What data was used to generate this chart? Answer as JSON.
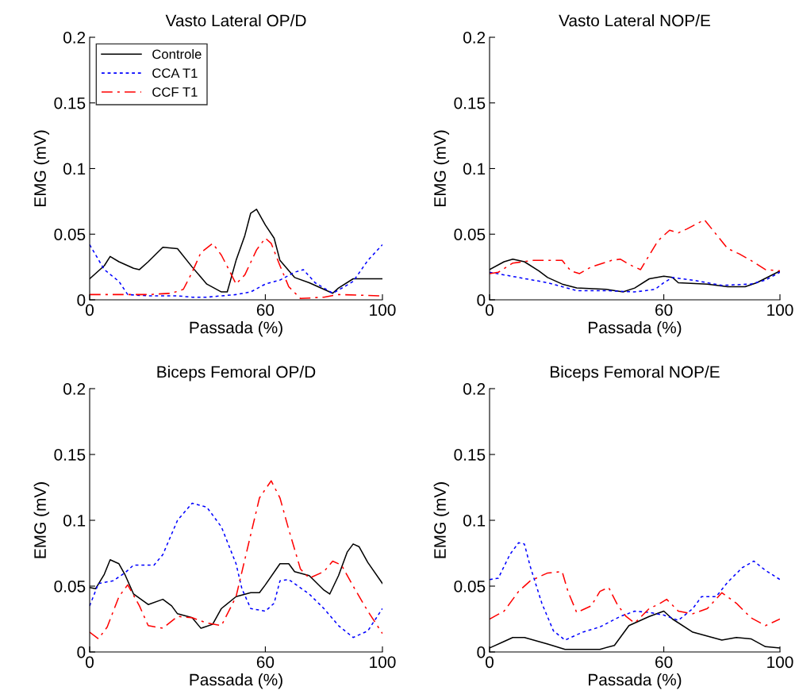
{
  "chart_data": [
    {
      "type": "line",
      "title": "Vasto Lateral OP/D",
      "xlabel": "Passada (%)",
      "ylabel": "EMG (mV)",
      "xlim": [
        0,
        100
      ],
      "xticks": [
        0,
        60,
        100
      ],
      "ylim": [
        0,
        0.2
      ],
      "yticks": [
        0,
        0.05,
        0.1,
        0.15,
        0.2
      ],
      "grid": false,
      "legend": "top left",
      "series": [
        {
          "name": "Controle",
          "color": "#000000",
          "line_style": "solid",
          "x": [
            0,
            5,
            7,
            10,
            15,
            17,
            20,
            25,
            30,
            35,
            40,
            45,
            47,
            50,
            53,
            55,
            57,
            60,
            63,
            65,
            70,
            75,
            80,
            83,
            85,
            90,
            95,
            100
          ],
          "values": [
            0.016,
            0.026,
            0.033,
            0.029,
            0.024,
            0.023,
            0.029,
            0.04,
            0.039,
            0.025,
            0.012,
            0.006,
            0.006,
            0.03,
            0.049,
            0.066,
            0.069,
            0.057,
            0.047,
            0.03,
            0.017,
            0.013,
            0.008,
            0.005,
            0.009,
            0.016,
            0.016,
            0.016
          ]
        },
        {
          "name": "CCA T1",
          "color": "#0000ff",
          "line_style": "dotted",
          "x": [
            0,
            5,
            10,
            13,
            20,
            30,
            35,
            40,
            45,
            50,
            55,
            60,
            65,
            70,
            73,
            77,
            83,
            87,
            90,
            95,
            100
          ],
          "values": [
            0.042,
            0.023,
            0.014,
            0.004,
            0.003,
            0.003,
            0.002,
            0.002,
            0.003,
            0.004,
            0.006,
            0.012,
            0.015,
            0.021,
            0.023,
            0.013,
            0.005,
            0.01,
            0.014,
            0.03,
            0.042
          ]
        },
        {
          "name": "CCF T1",
          "color": "#ff0000",
          "line_style": "dashed",
          "x": [
            0,
            10,
            20,
            28,
            32,
            35,
            38,
            42,
            45,
            48,
            50,
            53,
            57,
            60,
            62,
            65,
            68,
            72,
            80,
            85,
            100
          ],
          "values": [
            0.004,
            0.004,
            0.004,
            0.005,
            0.008,
            0.021,
            0.036,
            0.043,
            0.034,
            0.021,
            0.012,
            0.019,
            0.038,
            0.047,
            0.043,
            0.026,
            0.01,
            0.001,
            0.002,
            0.004,
            0.003
          ]
        }
      ]
    },
    {
      "type": "line",
      "title": "Vasto Lateral NOP/E",
      "xlabel": "Passada (%)",
      "ylabel": "EMG (mV)",
      "xlim": [
        0,
        100
      ],
      "xticks": [
        0,
        60,
        100
      ],
      "ylim": [
        0,
        0.2
      ],
      "yticks": [
        0,
        0.05,
        0.1,
        0.15,
        0.2
      ],
      "grid": false,
      "series": [
        {
          "color": "#000000",
          "line_style": "solid",
          "x": [
            0,
            5,
            8,
            12,
            17,
            20,
            25,
            30,
            40,
            46,
            50,
            55,
            60,
            63,
            65,
            75,
            82,
            88,
            92,
            100
          ],
          "values": [
            0.023,
            0.029,
            0.031,
            0.029,
            0.022,
            0.017,
            0.012,
            0.009,
            0.008,
            0.006,
            0.009,
            0.016,
            0.018,
            0.017,
            0.013,
            0.012,
            0.01,
            0.01,
            0.013,
            0.022
          ]
        },
        {
          "color": "#0000ff",
          "line_style": "dotted",
          "x": [
            0,
            10,
            20,
            30,
            40,
            50,
            57,
            60,
            63,
            70,
            80,
            90,
            95,
            100
          ],
          "values": [
            0.021,
            0.017,
            0.013,
            0.007,
            0.007,
            0.006,
            0.008,
            0.013,
            0.017,
            0.015,
            0.011,
            0.012,
            0.015,
            0.021
          ]
        },
        {
          "color": "#ff0000",
          "line_style": "dashed",
          "x": [
            0,
            3,
            8,
            15,
            20,
            25,
            28,
            31,
            35,
            42,
            45,
            48,
            52,
            55,
            58,
            62,
            65,
            68,
            74,
            78,
            82,
            86,
            90,
            95,
            100
          ],
          "values": [
            0.02,
            0.021,
            0.028,
            0.03,
            0.03,
            0.03,
            0.022,
            0.02,
            0.025,
            0.03,
            0.031,
            0.027,
            0.023,
            0.034,
            0.045,
            0.053,
            0.051,
            0.054,
            0.061,
            0.05,
            0.039,
            0.035,
            0.03,
            0.023,
            0.022
          ]
        }
      ]
    },
    {
      "type": "line",
      "title": "Biceps Femoral OP/D",
      "xlabel": "Passada (%)",
      "ylabel": "EMG (mV)",
      "xlim": [
        0,
        100
      ],
      "xticks": [
        0,
        60,
        100
      ],
      "ylim": [
        0,
        0.2
      ],
      "yticks": [
        0,
        0.05,
        0.1,
        0.15,
        0.2
      ],
      "grid": false,
      "series": [
        {
          "color": "#000000",
          "line_style": "solid",
          "x": [
            0,
            2,
            5,
            7,
            10,
            12,
            15,
            20,
            25,
            28,
            30,
            35,
            38,
            42,
            45,
            50,
            55,
            58,
            60,
            65,
            68,
            70,
            75,
            80,
            82,
            85,
            88,
            90,
            92,
            95,
            100
          ],
          "values": [
            0.049,
            0.048,
            0.059,
            0.07,
            0.067,
            0.059,
            0.044,
            0.036,
            0.04,
            0.035,
            0.029,
            0.026,
            0.018,
            0.021,
            0.033,
            0.042,
            0.045,
            0.045,
            0.051,
            0.067,
            0.067,
            0.061,
            0.058,
            0.047,
            0.044,
            0.058,
            0.076,
            0.082,
            0.08,
            0.068,
            0.052
          ]
        },
        {
          "color": "#0000ff",
          "line_style": "dotted",
          "x": [
            0,
            3,
            8,
            12,
            15,
            22,
            25,
            30,
            35,
            40,
            45,
            50,
            52,
            55,
            60,
            63,
            65,
            68,
            75,
            80,
            85,
            90,
            95,
            100
          ],
          "values": [
            0.035,
            0.052,
            0.054,
            0.06,
            0.066,
            0.066,
            0.074,
            0.1,
            0.113,
            0.11,
            0.095,
            0.067,
            0.048,
            0.033,
            0.031,
            0.037,
            0.054,
            0.055,
            0.044,
            0.033,
            0.02,
            0.011,
            0.016,
            0.033
          ]
        },
        {
          "color": "#ff0000",
          "line_style": "dashed",
          "x": [
            0,
            3,
            6,
            10,
            13,
            17,
            20,
            25,
            30,
            35,
            40,
            45,
            50,
            55,
            58,
            62,
            65,
            68,
            72,
            75,
            80,
            83,
            86,
            90,
            95,
            100
          ],
          "values": [
            0.015,
            0.01,
            0.019,
            0.042,
            0.051,
            0.035,
            0.02,
            0.018,
            0.027,
            0.026,
            0.022,
            0.02,
            0.042,
            0.089,
            0.117,
            0.13,
            0.117,
            0.093,
            0.063,
            0.056,
            0.061,
            0.069,
            0.066,
            0.05,
            0.031,
            0.014
          ]
        }
      ]
    },
    {
      "type": "line",
      "title": "Biceps Femoral NOP/E",
      "xlabel": "Passada (%)",
      "ylabel": "EMG (mV)",
      "xlim": [
        0,
        100
      ],
      "xticks": [
        0,
        60,
        100
      ],
      "ylim": [
        0,
        0.2
      ],
      "yticks": [
        0,
        0.05,
        0.1,
        0.15,
        0.2
      ],
      "grid": false,
      "series": [
        {
          "color": "#000000",
          "line_style": "solid",
          "x": [
            0,
            5,
            8,
            12,
            20,
            26,
            38,
            43,
            48,
            55,
            60,
            63,
            70,
            80,
            85,
            90,
            95,
            100
          ],
          "values": [
            0.003,
            0.008,
            0.011,
            0.011,
            0.006,
            0.002,
            0.002,
            0.005,
            0.02,
            0.027,
            0.031,
            0.025,
            0.015,
            0.009,
            0.011,
            0.01,
            0.004,
            0.003
          ]
        },
        {
          "color": "#0000ff",
          "line_style": "dotted",
          "x": [
            0,
            3,
            7,
            10,
            12,
            14,
            18,
            22,
            26,
            32,
            38,
            45,
            50,
            55,
            60,
            65,
            70,
            73,
            78,
            82,
            87,
            91,
            95,
            100
          ],
          "values": [
            0.055,
            0.056,
            0.074,
            0.083,
            0.082,
            0.065,
            0.037,
            0.016,
            0.009,
            0.015,
            0.019,
            0.027,
            0.031,
            0.03,
            0.028,
            0.024,
            0.033,
            0.042,
            0.042,
            0.053,
            0.064,
            0.069,
            0.062,
            0.055
          ]
        },
        {
          "color": "#ff0000",
          "line_style": "dashed",
          "x": [
            0,
            5,
            10,
            14,
            20,
            25,
            27,
            30,
            35,
            38,
            41,
            44,
            47,
            50,
            55,
            58,
            61,
            65,
            70,
            75,
            80,
            85,
            90,
            95,
            100
          ],
          "values": [
            0.025,
            0.031,
            0.046,
            0.054,
            0.06,
            0.061,
            0.046,
            0.03,
            0.035,
            0.046,
            0.049,
            0.036,
            0.027,
            0.022,
            0.033,
            0.036,
            0.04,
            0.031,
            0.029,
            0.033,
            0.045,
            0.037,
            0.026,
            0.02,
            0.025
          ]
        }
      ]
    }
  ]
}
